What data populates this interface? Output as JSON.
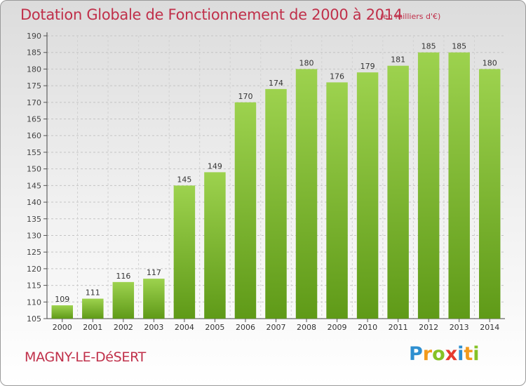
{
  "title": "Dotation Globale de Fonctionnement de 2000 à 2014",
  "unit": "(en milliers d'€)",
  "commune": "MAGNY-LE-DéSERT",
  "logo": {
    "letters": [
      {
        "char": "P",
        "color": "#2e8fd0"
      },
      {
        "char": "r",
        "color": "#f29a1c"
      },
      {
        "char": "o",
        "color": "#85c226"
      },
      {
        "char": "x",
        "color": "#e63a2e"
      },
      {
        "char": "i",
        "color": "#2e8fd0"
      },
      {
        "char": "t",
        "color": "#f29a1c"
      },
      {
        "char": "i",
        "color": "#85c226"
      }
    ]
  },
  "colors": {
    "bar_light": "#9dd24e",
    "bar_dark": "#5f9a18",
    "accent": "#c0304a"
  },
  "chart_data": {
    "type": "bar",
    "title": "Dotation Globale de Fonctionnement de 2000 à 2014",
    "categories": [
      "2000",
      "2001",
      "2002",
      "2003",
      "2004",
      "2005",
      "2006",
      "2007",
      "2008",
      "2009",
      "2010",
      "2011",
      "2012",
      "2013",
      "2014"
    ],
    "values": [
      109,
      111,
      116,
      117,
      145,
      149,
      170,
      174,
      180,
      176,
      179,
      181,
      185,
      185,
      180
    ],
    "ylim": [
      105,
      190
    ],
    "yticks": [
      105,
      110,
      115,
      120,
      125,
      130,
      135,
      140,
      145,
      150,
      155,
      160,
      165,
      170,
      175,
      180,
      185,
      190
    ],
    "grid": true,
    "xlabel": "",
    "ylabel": ""
  }
}
